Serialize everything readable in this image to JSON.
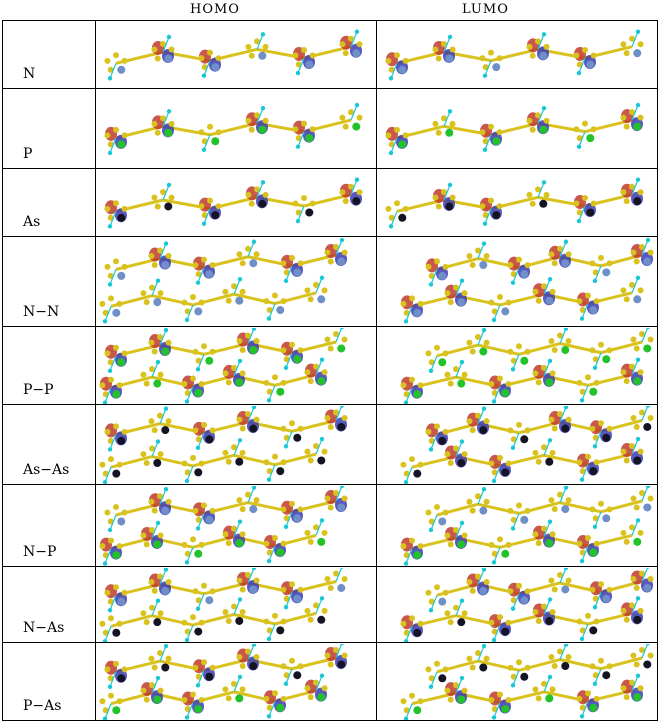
{
  "headers": {
    "homo": "HOMO",
    "lumo": "LUMO"
  },
  "colors": {
    "carbon": "#d9c21d",
    "nitrogen": "#6f8fc9",
    "phosphorus": "#22c22a",
    "arsenic": "#141424",
    "hydrogen": "#19c7d6",
    "orbital_pos": "#c0392b",
    "orbital_neg": "#3b3bb5"
  },
  "rows": [
    {
      "label": "N",
      "kind": "single",
      "het": "nitrogen"
    },
    {
      "label": "P",
      "kind": "single",
      "het": "phosphorus"
    },
    {
      "label": "As",
      "kind": "single",
      "het": "arsenic"
    },
    {
      "label": "N−N",
      "kind": "double",
      "het": "nitrogen"
    },
    {
      "label": "P−P",
      "kind": "double",
      "het": "phosphorus"
    },
    {
      "label": "As−As",
      "kind": "double",
      "het": "arsenic"
    },
    {
      "label": "N−P",
      "kind": "double",
      "het": "nitrogen",
      "het2": "phosphorus"
    },
    {
      "label": "N−As",
      "kind": "double",
      "het": "nitrogen",
      "het2": "arsenic"
    },
    {
      "label": "P−As",
      "kind": "double",
      "het": "arsenic",
      "het2": "phosphorus"
    }
  ]
}
